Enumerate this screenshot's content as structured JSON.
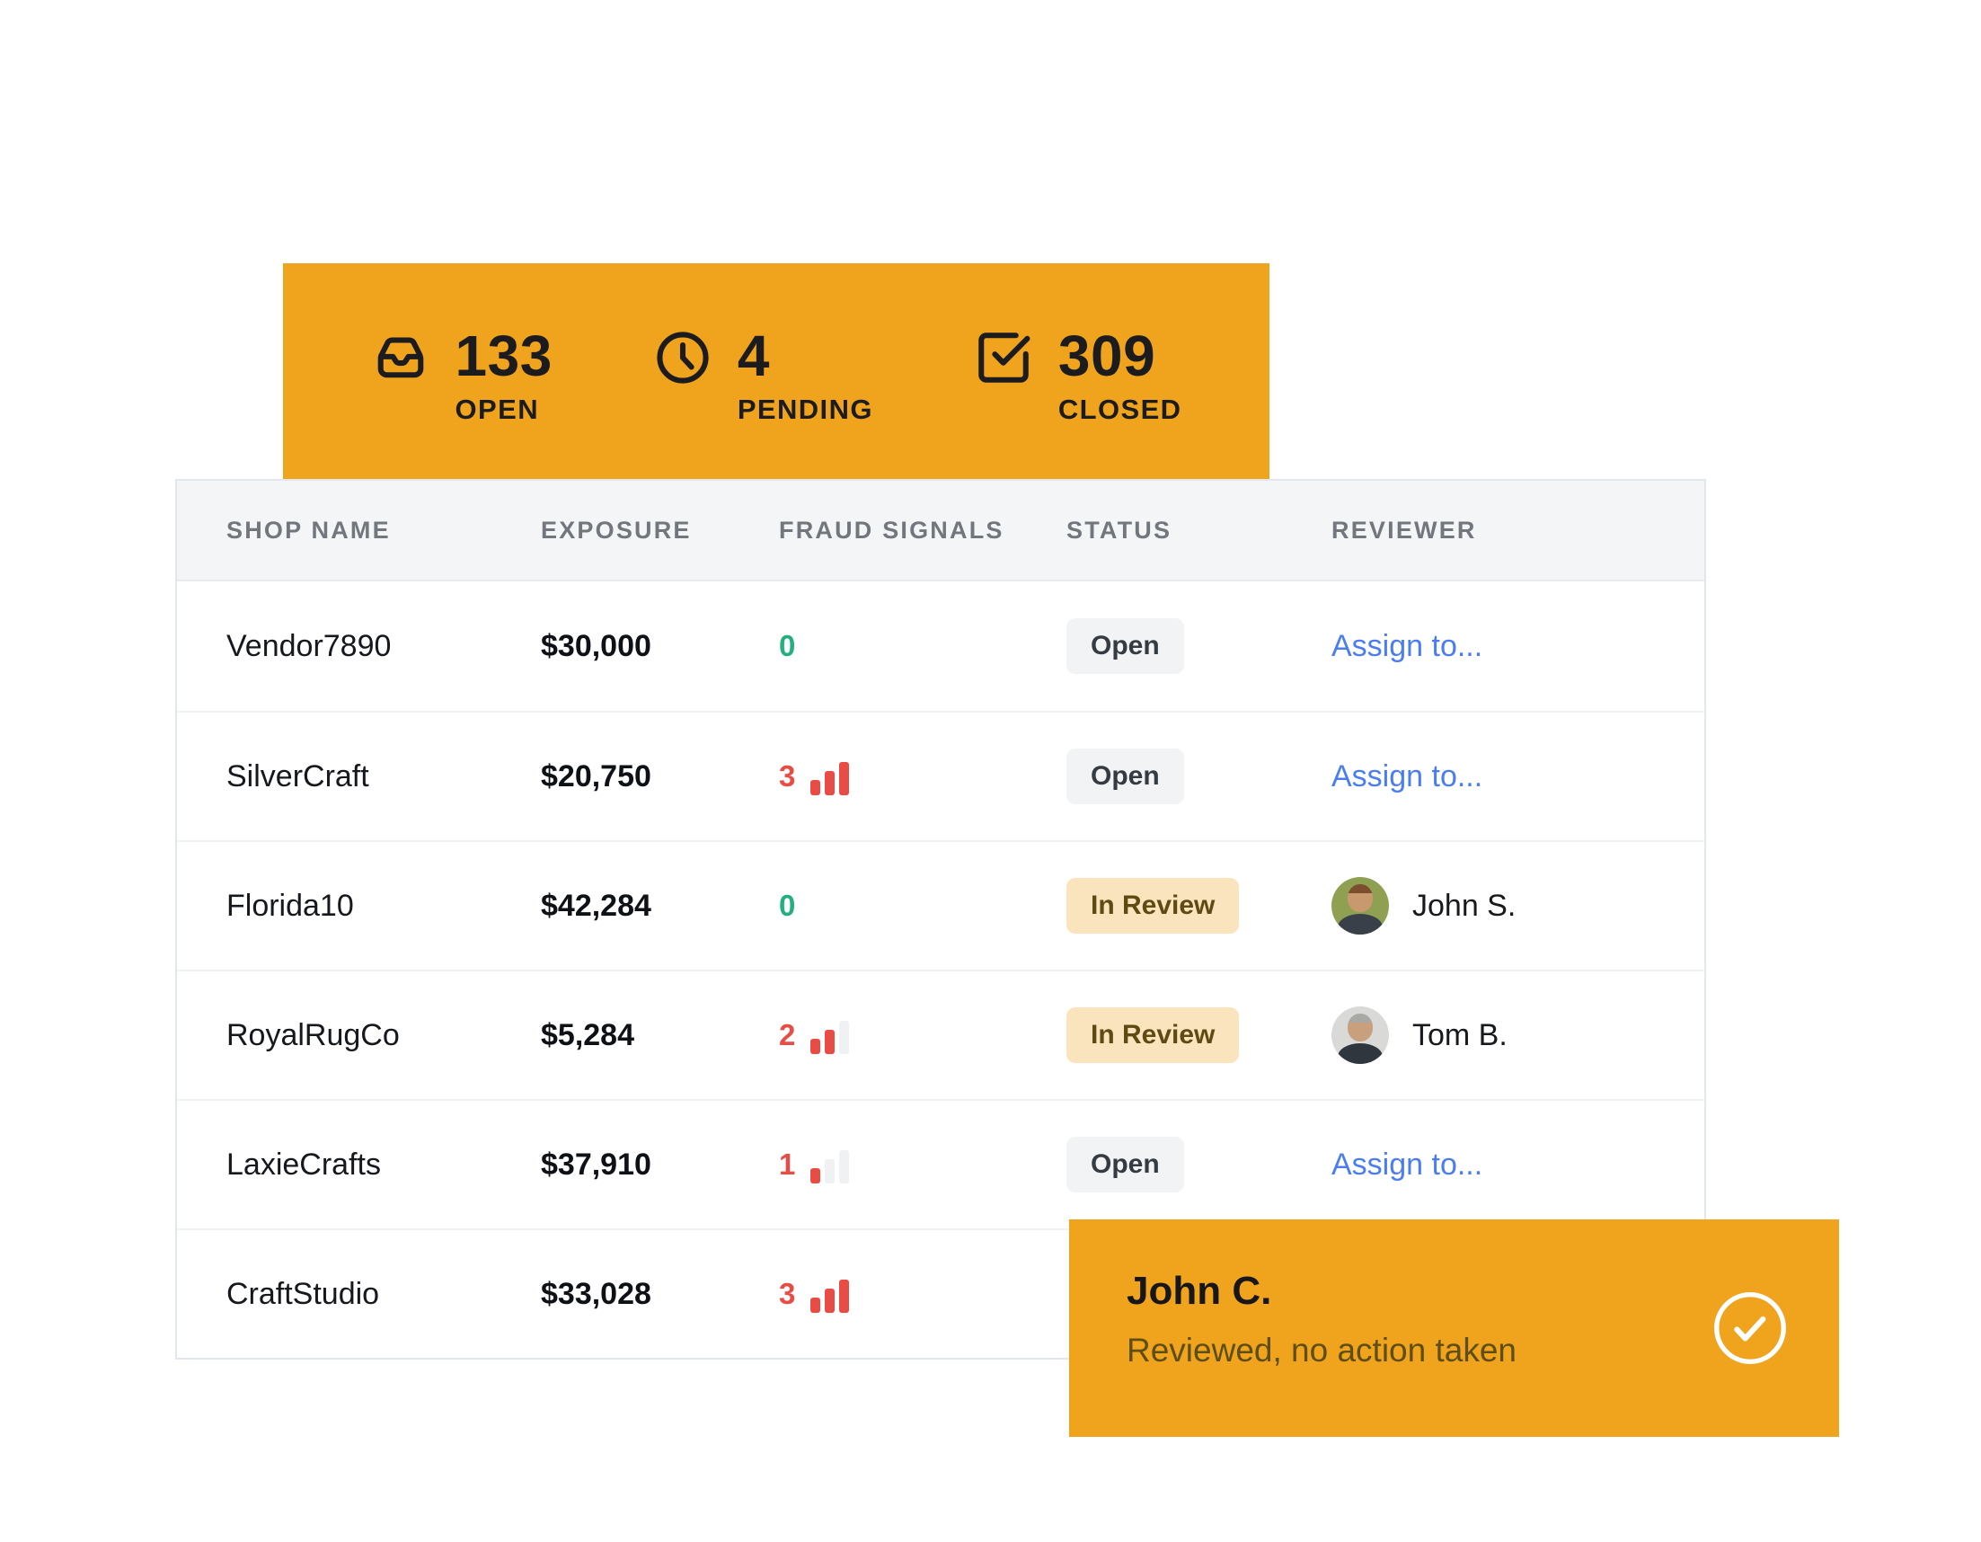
{
  "colors": {
    "accent_orange": "#F0A41E",
    "signal_red": "#E94B45",
    "signal_green": "#22B07D",
    "link_blue": "#4A7DF0",
    "badge_open_bg": "#F2F3F4",
    "badge_review_bg": "#FAE4BD",
    "badge_review_text": "#5F4A14"
  },
  "summary_banner": {
    "stats": [
      {
        "icon": "inbox-icon",
        "value": "133",
        "label": "OPEN"
      },
      {
        "icon": "clock-icon",
        "value": "4",
        "label": "PENDING"
      },
      {
        "icon": "check-square-icon",
        "value": "309",
        "label": "CLOSED"
      }
    ]
  },
  "table": {
    "columns": [
      "SHOP NAME",
      "EXPOSURE",
      "FRAUD SIGNALS",
      "STATUS",
      "REVIEWER"
    ],
    "rows": [
      {
        "shop_name": "Vendor7890",
        "exposure": "$30,000",
        "fraud_signals": 0,
        "status": "Open",
        "reviewer": {
          "type": "assign",
          "label": "Assign to..."
        }
      },
      {
        "shop_name": "SilverCraft",
        "exposure": "$20,750",
        "fraud_signals": 3,
        "status": "Open",
        "reviewer": {
          "type": "assign",
          "label": "Assign to..."
        }
      },
      {
        "shop_name": "Florida10",
        "exposure": "$42,284",
        "fraud_signals": 0,
        "status": "In Review",
        "reviewer": {
          "type": "person",
          "name": "John S.",
          "avatar_colors": {
            "bg": "#8FA052",
            "skin": "#C9996E",
            "hair": "#7B4F2E",
            "shirt": "#39404A"
          }
        }
      },
      {
        "shop_name": "RoyalRugCo",
        "exposure": "$5,284",
        "fraud_signals": 2,
        "status": "In Review",
        "reviewer": {
          "type": "person",
          "name": "Tom B.",
          "avatar_colors": {
            "bg": "#D9D9D7",
            "skin": "#C9A07E",
            "hair": "#A8A8A4",
            "shirt": "#30363E"
          }
        }
      },
      {
        "shop_name": "LaxieCrafts",
        "exposure": "$37,910",
        "fraud_signals": 1,
        "status": "Open",
        "reviewer": {
          "type": "assign",
          "label": "Assign to..."
        }
      },
      {
        "shop_name": "CraftStudio",
        "exposure": "$33,028",
        "fraud_signals": 3,
        "status": null,
        "reviewer": null
      }
    ]
  },
  "toast": {
    "icon": "check-circle-icon",
    "title": "John C.",
    "subtitle": "Reviewed, no action taken"
  }
}
